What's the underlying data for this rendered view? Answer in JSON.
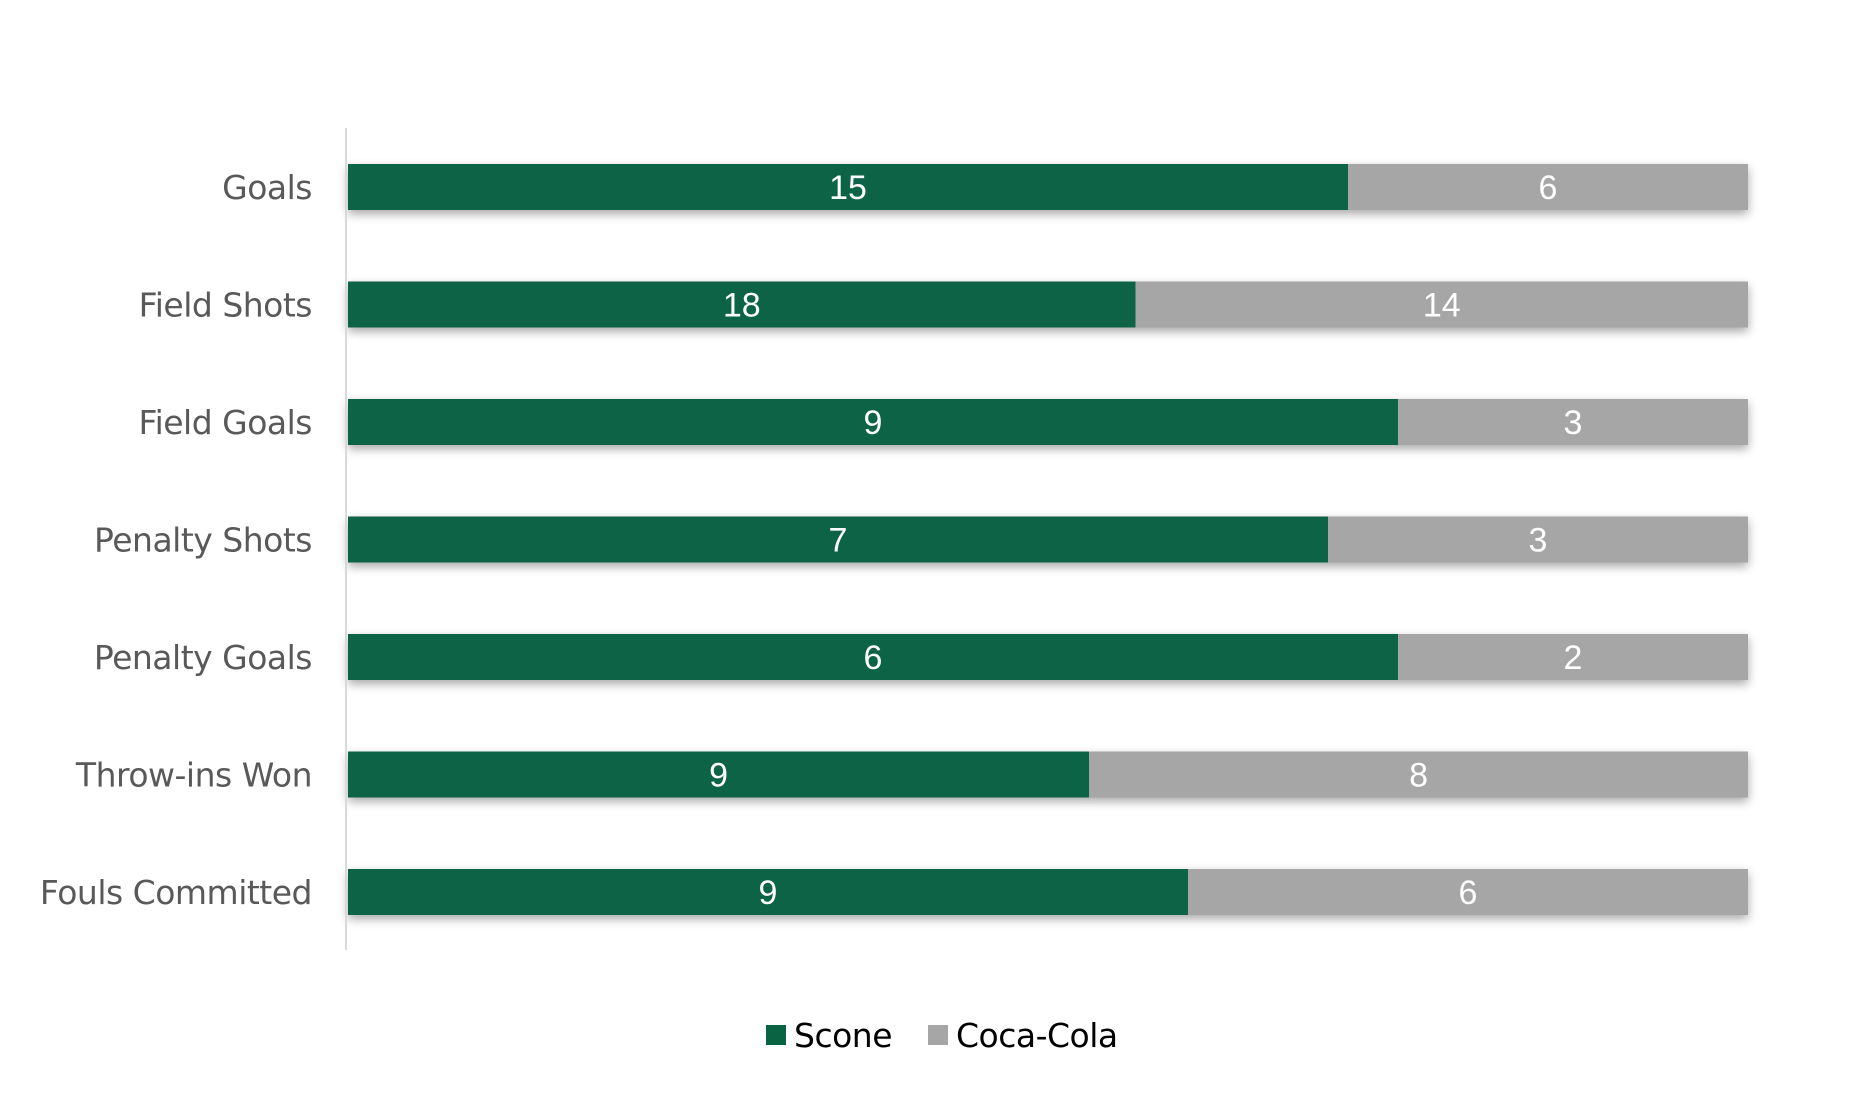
{
  "chart_data": {
    "type": "bar",
    "orientation": "horizontal",
    "stacking": "percent",
    "categories": [
      "Goals",
      "Field Shots",
      "Field Goals",
      "Penalty Shots",
      "Penalty Goals",
      "Throw-ins Won",
      "Fouls Committed"
    ],
    "series": [
      {
        "name": "Scone",
        "values": [
          15,
          18,
          9,
          7,
          6,
          9,
          9
        ],
        "color": "#0a6444"
      },
      {
        "name": "Coca-Cola",
        "values": [
          6,
          14,
          3,
          3,
          2,
          8,
          6
        ],
        "color": "#a6a6a6"
      }
    ],
    "xlim": [
      0,
      1
    ],
    "grid": false,
    "legend": "bottom-center"
  }
}
